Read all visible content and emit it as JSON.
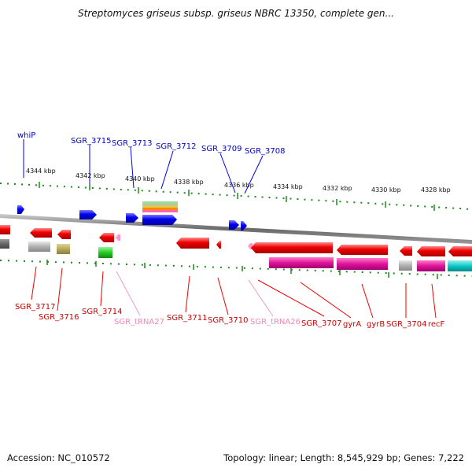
{
  "title": "Streptomyces griseus subsp. griseus NBRC 13350, complete gen...",
  "footer": {
    "accession": "Accession: NC_010572",
    "topology": "Topology: linear; Length: 8,545,929 bp; Genes: 7,222"
  },
  "scale_labels": [
    "4344 kbp",
    "4342 kbp",
    "4340 kbp",
    "4338 kbp",
    "4336 kbp",
    "4334 kbp",
    "4332 kbp",
    "4330 kbp",
    "4328 kbp"
  ],
  "top_labels": [
    "whiP",
    "SGR_3715",
    "SGR_3713",
    "SGR_3712",
    "SGR_3709",
    "SGR_3708"
  ],
  "bottom_labels": [
    "SGR_3717",
    "SGR_3716",
    "SGR_3714",
    "SGR_tRNA27",
    "SGR_3711",
    "SGR_3710",
    "SGR_tRNA26",
    "SGR_3707",
    "gyrA",
    "gyrB",
    "SGR_3704",
    "recF"
  ],
  "colors": {
    "forward_gene": "#0000ee",
    "reverse_gene": "#ee0000",
    "trna_label": "#ee88bb",
    "scale_ticks": "#1a8a1a",
    "backbone": "#777777"
  }
}
